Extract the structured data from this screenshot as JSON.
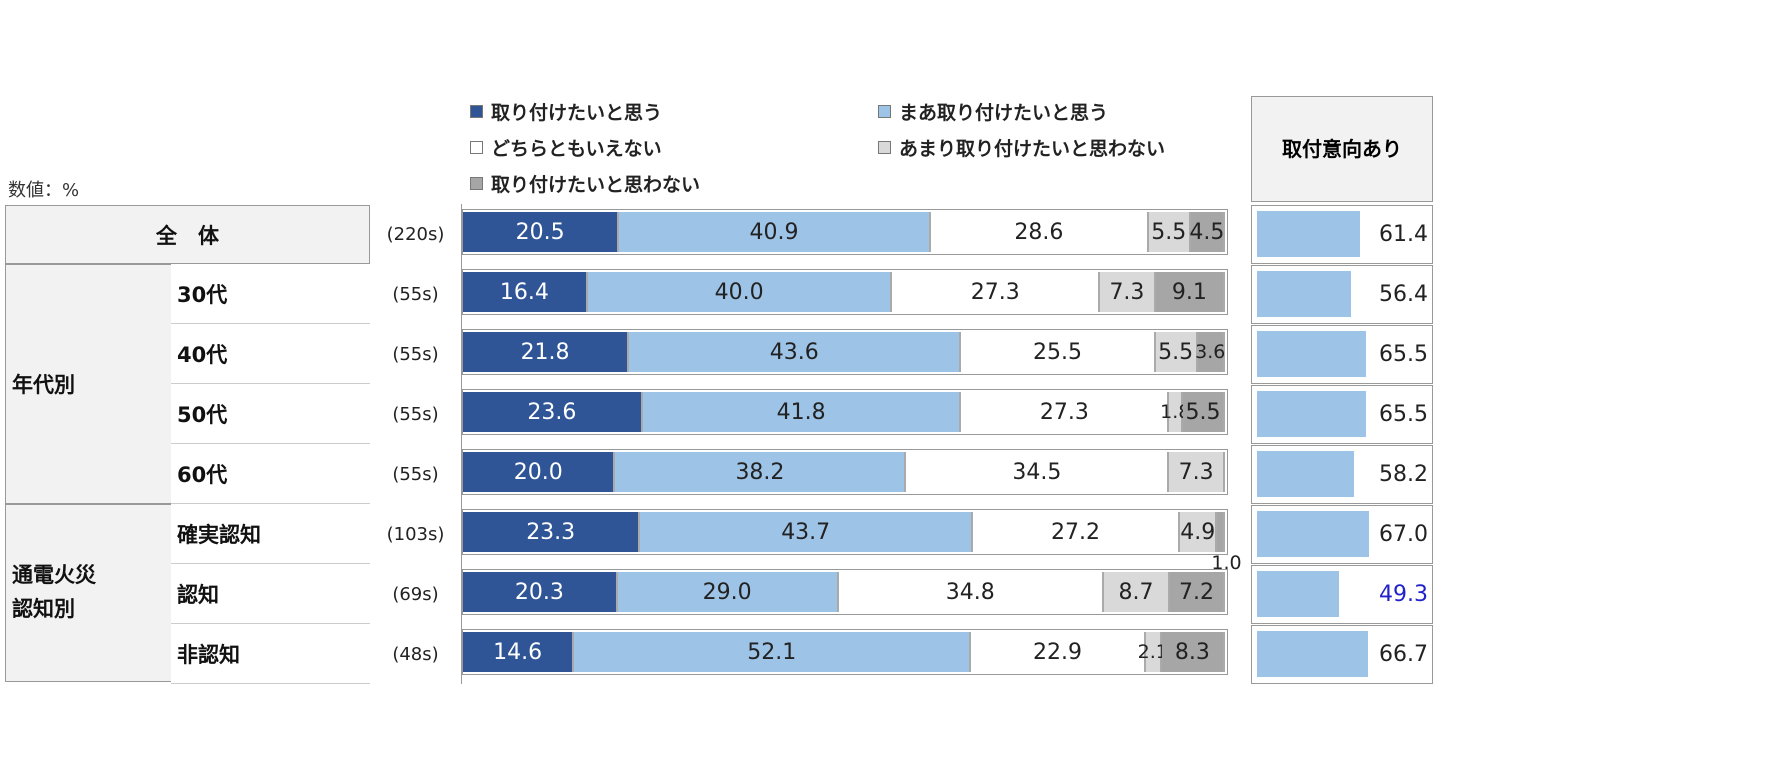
{
  "chart_data": {
    "type": "bar",
    "stacked": true,
    "orientation": "horizontal",
    "unit_label": "数値：%",
    "legend": [
      "取り付けたいと思う",
      "まあ取り付けたいと思う",
      "どちらともいえない",
      "あまり取り付けたいと思わない",
      "取り付けたいと思わない"
    ],
    "colors": [
      "#2F5597",
      "#9DC3E6",
      "#FFFFFF",
      "#D9D9D9",
      "#A6A6A6"
    ],
    "legend_placement": "top",
    "right_header": [
      "取付意向",
      "あり"
    ],
    "rows": [
      {
        "group": "全　体",
        "label": "",
        "n": "(220s)",
        "values": [
          20.5,
          40.9,
          28.6,
          5.5,
          4.5
        ],
        "intent": "61.4"
      },
      {
        "group": "年代別",
        "label": "30代",
        "n": "(55s)",
        "values": [
          16.4,
          40.0,
          27.3,
          7.3,
          9.1
        ],
        "intent": "56.4"
      },
      {
        "group": "年代別",
        "label": "40代",
        "n": "(55s)",
        "values": [
          21.8,
          43.6,
          25.5,
          5.5,
          3.6
        ],
        "intent": "65.5"
      },
      {
        "group": "年代別",
        "label": "50代",
        "n": "(55s)",
        "values": [
          23.6,
          41.8,
          27.3,
          1.8,
          5.5
        ],
        "intent": "65.5"
      },
      {
        "group": "年代別",
        "label": "60代",
        "n": "(55s)",
        "values": [
          20.0,
          38.2,
          34.5,
          7.3,
          0
        ],
        "intent": "58.2"
      },
      {
        "group": "通電火災\n認知別",
        "label": "確実認知",
        "n": "(103s)",
        "values": [
          23.3,
          43.7,
          27.2,
          4.9,
          1.0
        ],
        "intent": "67.0"
      },
      {
        "group": "通電火災\n認知別",
        "label": "認知",
        "n": "(69s)",
        "values": [
          20.3,
          29.0,
          34.8,
          8.7,
          7.2
        ],
        "intent": "49.3",
        "intent_color": "#2222CC"
      },
      {
        "group": "通電火災\n認知別",
        "label": "非認知",
        "n": "(48s)",
        "values": [
          14.6,
          52.1,
          22.9,
          2.1,
          8.3
        ],
        "intent": "66.7"
      }
    ],
    "groups": {
      "age": "年代別",
      "aware": "通電火災\n認知別"
    },
    "value_labels": [
      [
        "20.5",
        "40.9",
        "28.6",
        "5.5",
        "4.5"
      ],
      [
        "16.4",
        "40.0",
        "27.3",
        "7.3",
        "9.1"
      ],
      [
        "21.8",
        "43.6",
        "25.5",
        "5.5",
        "3.6"
      ],
      [
        "23.6",
        "41.8",
        "27.3",
        "1.8",
        "5.5"
      ],
      [
        "20.0",
        "38.2",
        "34.5",
        "7.3",
        ""
      ],
      [
        "23.3",
        "43.7",
        "27.2",
        "4.9",
        "1.0"
      ],
      [
        "20.3",
        "29.0",
        "34.8",
        "8.7",
        "7.2"
      ],
      [
        "14.6",
        "52.1",
        "22.9",
        "2.1",
        "8.3"
      ]
    ]
  }
}
